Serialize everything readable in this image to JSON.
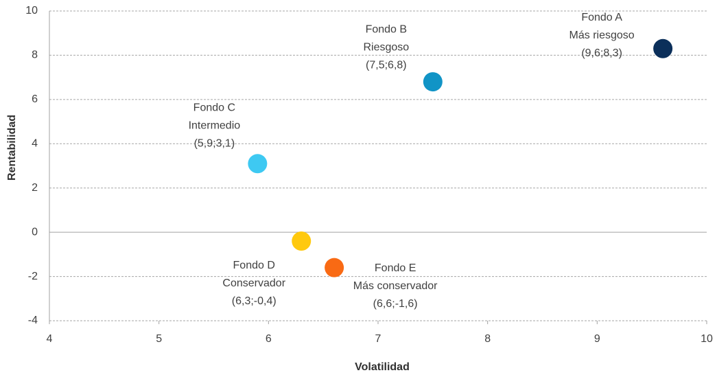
{
  "chart_data": {
    "type": "scatter",
    "x_label": "Volatilidad",
    "y_label": "Rentabilidad",
    "xlim": [
      4,
      10
    ],
    "xticks": [
      4,
      5,
      6,
      7,
      8,
      9,
      10
    ],
    "ylim": [
      -4,
      10
    ],
    "yticks": [
      -4,
      -2,
      0,
      2,
      4,
      6,
      8,
      10
    ],
    "grid": true,
    "points": [
      {
        "name": "Fondo A",
        "note": "Más riesgoso",
        "label": "(9,6;8,3)",
        "x": 9.6,
        "y": 8.3,
        "color": "#0b2f5a"
      },
      {
        "name": "Fondo B",
        "note": "Riesgoso",
        "label": "(7,5;6,8)",
        "x": 7.5,
        "y": 6.8,
        "color": "#1194c6"
      },
      {
        "name": "Fondo C",
        "note": "Intermedio",
        "label": "(5,9;3,1)",
        "x": 5.9,
        "y": 3.1,
        "color": "#3ec9f2"
      },
      {
        "name": "Fondo D",
        "note": "Conservador",
        "label": "(6,3;-0,4)",
        "x": 6.3,
        "y": -0.4,
        "color": "#ffc90e"
      },
      {
        "name": "Fondo E",
        "note": "Más conservador",
        "label": "(6,6;-1,6)",
        "x": 6.6,
        "y": -1.6,
        "color": "#f96a14"
      }
    ]
  }
}
